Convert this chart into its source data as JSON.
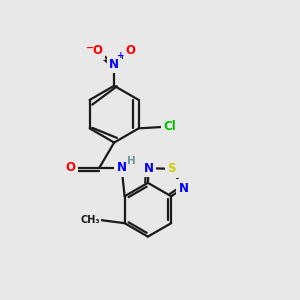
{
  "bg_color": "#e8e8e8",
  "bond_color": "#1a1a1a",
  "atom_colors": {
    "N": "#0000ff",
    "O": "#ff0000",
    "S": "#cccc00",
    "Cl": "#00bb00",
    "H": "#6a9a9a",
    "C": "#1a1a1a"
  },
  "lw": 1.6,
  "fontsize": 8.5
}
